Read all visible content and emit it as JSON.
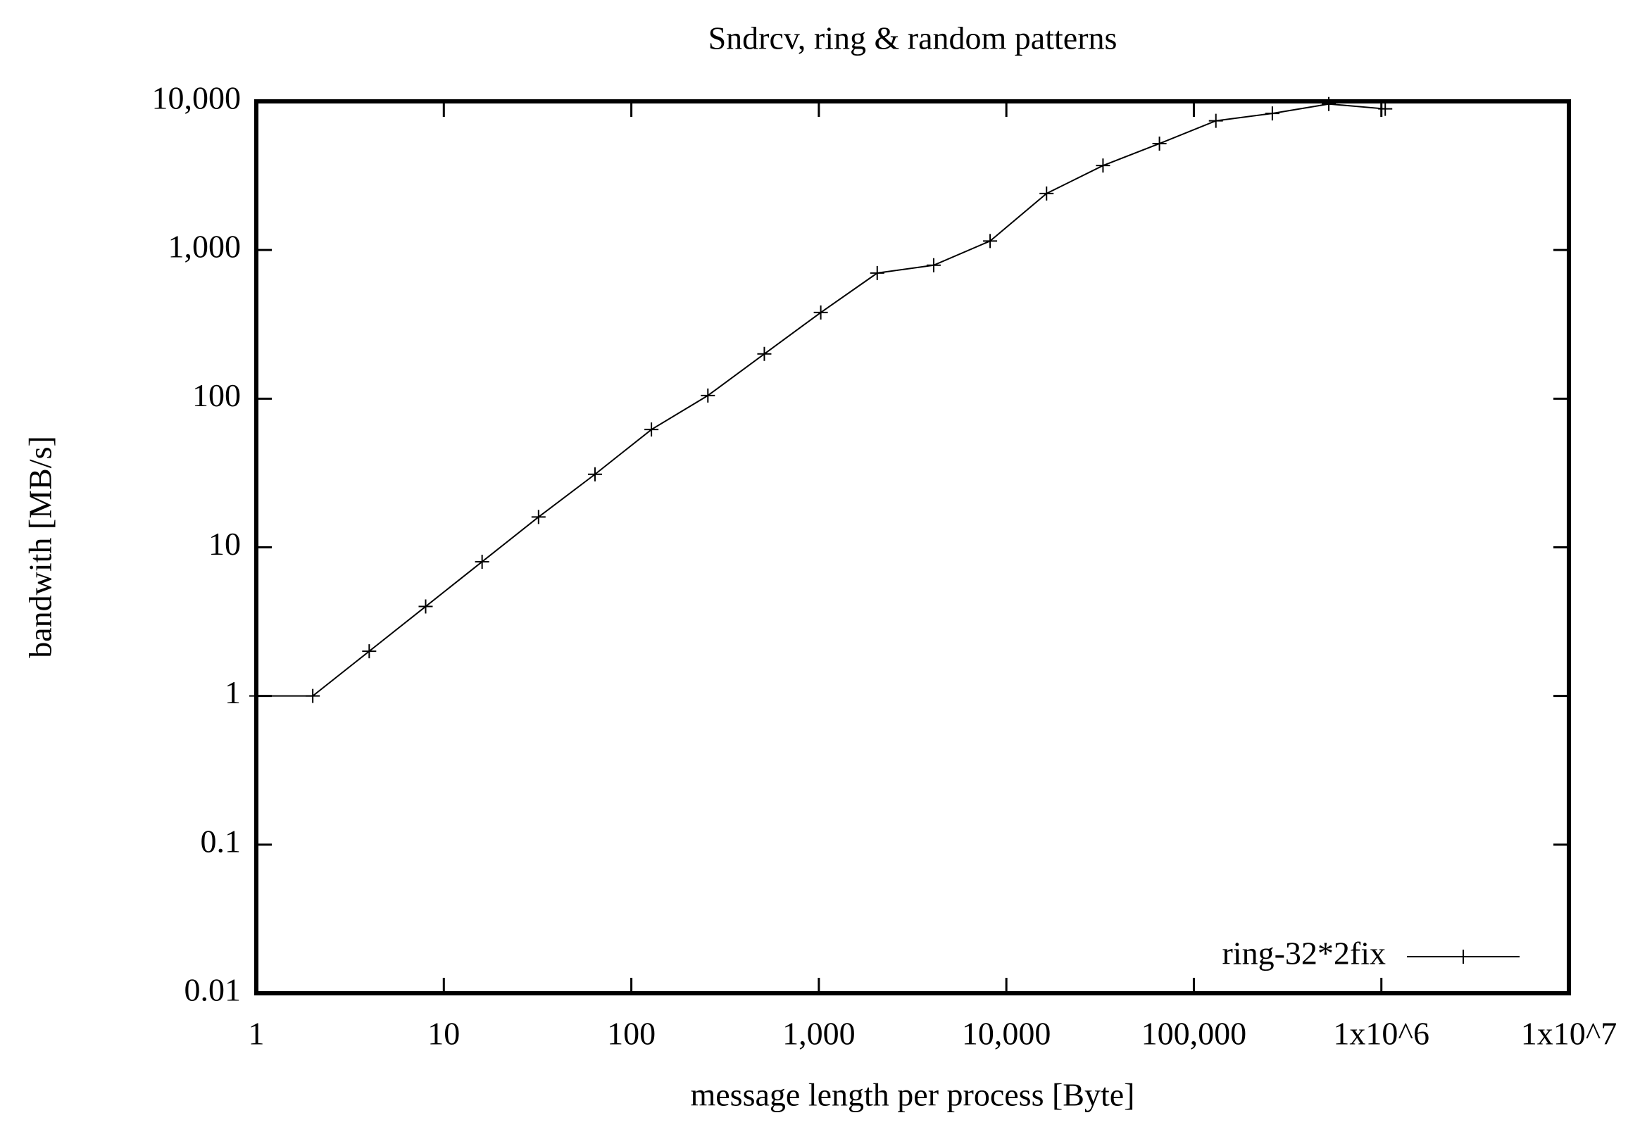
{
  "chart_data": {
    "type": "line",
    "title": "Sndrcv, ring & random patterns",
    "xlabel": "message length per process [Byte]",
    "ylabel": "bandwith [MB/s]",
    "xscale": "log",
    "yscale": "log",
    "xlim": [
      1,
      10000000
    ],
    "ylim": [
      0.01,
      10000
    ],
    "xticks": [
      1,
      10,
      100,
      {
        "value": 1000,
        "label": "1,000"
      },
      {
        "value": 10000,
        "label": "10,000"
      },
      {
        "value": 100000,
        "label": "100,000"
      },
      {
        "value": 1000000,
        "label": "1x10^6"
      },
      {
        "value": 10000000,
        "label": "1x10^7"
      }
    ],
    "yticks": [
      0.01,
      0.1,
      1,
      10,
      100,
      {
        "value": 1000,
        "label": "1,000"
      },
      {
        "value": 10000,
        "label": "10,000"
      }
    ],
    "legend": "bottom right",
    "series": [
      {
        "name": "ring-32*2fix",
        "color": "#000000",
        "marker": "+",
        "x": [
          1,
          2,
          4,
          8,
          16,
          32,
          64,
          128,
          256,
          512,
          1024,
          2048,
          4096,
          8192,
          16384,
          32768,
          65536,
          131072,
          262144,
          524288,
          1048576
        ],
        "values": [
          1,
          1,
          2,
          4,
          8,
          16,
          31,
          62,
          105,
          200,
          380,
          700,
          790,
          1150,
          2400,
          3700,
          5200,
          7400,
          8300,
          9600,
          8900
        ]
      }
    ]
  }
}
